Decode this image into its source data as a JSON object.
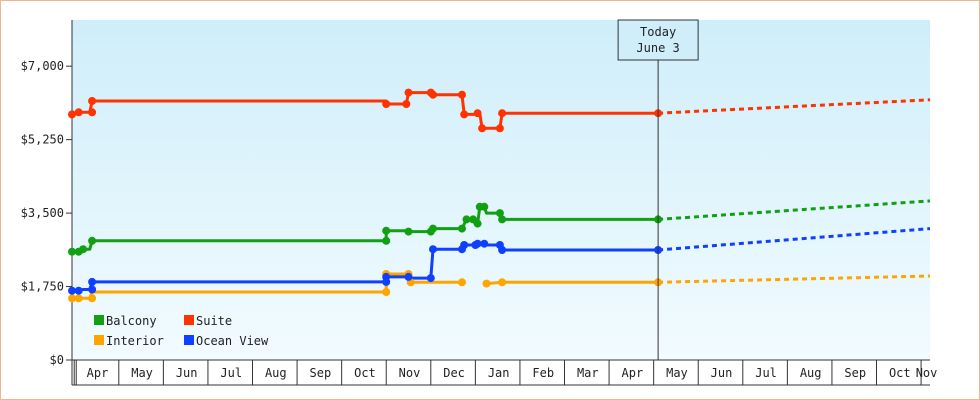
{
  "chart_data": {
    "type": "line",
    "title": "",
    "xlabel": "",
    "ylabel": "",
    "ylim": [
      0,
      8100
    ],
    "y_ticks": [
      {
        "value": 0,
        "label": "$0"
      },
      {
        "value": 1750,
        "label": "$1,750"
      },
      {
        "value": 3500,
        "label": "$3,500"
      },
      {
        "value": 5250,
        "label": "$5,250"
      },
      {
        "value": 7000,
        "label": "$7,000"
      }
    ],
    "months": [
      "Apr",
      "May",
      "Jun",
      "Jul",
      "Aug",
      "Sep",
      "Oct",
      "Nov",
      "Dec",
      "Jan",
      "Feb",
      "Mar",
      "Apr",
      "May",
      "Jun",
      "Jul",
      "Aug",
      "Sep",
      "Oct",
      "Nov"
    ],
    "x_range": [
      -0.05,
      19.2
    ],
    "today": {
      "x": 13.1,
      "label_line1": "Today",
      "label_line2": "June 3"
    },
    "grid": false,
    "legend_position": "bottom-left",
    "series": [
      {
        "name": "Balcony",
        "color": "#11a011",
        "points": [
          [
            -0.05,
            2580
          ],
          [
            0.0,
            2580
          ],
          [
            0.2,
            2640
          ],
          [
            0.35,
            2640
          ],
          [
            0.4,
            2840
          ],
          [
            7.0,
            2840
          ],
          [
            7.0,
            3080
          ],
          [
            7.5,
            3080
          ],
          [
            7.55,
            3060
          ],
          [
            8.0,
            3060
          ],
          [
            8.05,
            3130
          ],
          [
            8.7,
            3130
          ],
          [
            8.8,
            3350
          ],
          [
            8.95,
            3350
          ],
          [
            9.0,
            3250
          ],
          [
            9.05,
            3250
          ],
          [
            9.1,
            3650
          ],
          [
            9.2,
            3650
          ],
          [
            9.25,
            3500
          ],
          [
            9.55,
            3500
          ],
          [
            9.6,
            3350
          ],
          [
            13.1,
            3350
          ]
        ],
        "forecast": [
          [
            13.1,
            3350
          ],
          [
            19.2,
            3790
          ]
        ]
      },
      {
        "name": "Suite",
        "color": "#ff3300",
        "points": [
          [
            -0.05,
            5850
          ],
          [
            0.0,
            5850
          ],
          [
            0.1,
            5900
          ],
          [
            0.35,
            5900
          ],
          [
            0.4,
            6170
          ],
          [
            7.0,
            6170
          ],
          [
            7.0,
            6100
          ],
          [
            7.45,
            6100
          ],
          [
            7.5,
            6370
          ],
          [
            8.0,
            6370
          ],
          [
            8.05,
            6320
          ],
          [
            8.7,
            6320
          ],
          [
            8.75,
            5850
          ],
          [
            9.0,
            5850
          ],
          [
            9.05,
            5880
          ],
          [
            9.1,
            5880
          ],
          [
            9.15,
            5520
          ],
          [
            9.55,
            5520
          ],
          [
            9.6,
            5880
          ],
          [
            13.1,
            5880
          ]
        ],
        "forecast": [
          [
            13.1,
            5880
          ],
          [
            19.2,
            6200
          ]
        ]
      },
      {
        "name": "Interior",
        "color": "#ffa500",
        "points": [
          [
            -0.05,
            1470
          ],
          [
            0.0,
            1470
          ],
          [
            0.35,
            1470
          ],
          [
            0.4,
            1620
          ],
          [
            7.0,
            1620
          ],
          [
            7.0,
            2050
          ],
          [
            7.5,
            2050
          ],
          [
            7.55,
            1850
          ],
          [
            8.7,
            1850
          ]
        ],
        "points2": [
          [
            9.25,
            1820
          ],
          [
            9.6,
            1850
          ],
          [
            13.1,
            1850
          ]
        ],
        "forecast": [
          [
            13.1,
            1850
          ],
          [
            19.2,
            2000
          ]
        ]
      },
      {
        "name": "Ocean View",
        "color": "#1040ff",
        "points": [
          [
            -0.05,
            1650
          ],
          [
            0.0,
            1650
          ],
          [
            0.2,
            1680
          ],
          [
            0.35,
            1680
          ],
          [
            0.4,
            1860
          ],
          [
            7.0,
            1860
          ],
          [
            7.0,
            1980
          ],
          [
            7.5,
            1980
          ],
          [
            7.55,
            1950
          ],
          [
            8.0,
            1950
          ],
          [
            8.05,
            2640
          ],
          [
            8.7,
            2640
          ],
          [
            8.75,
            2740
          ],
          [
            9.0,
            2740
          ],
          [
            9.05,
            2770
          ],
          [
            9.2,
            2770
          ],
          [
            9.25,
            2740
          ],
          [
            9.55,
            2740
          ],
          [
            9.6,
            2620
          ],
          [
            13.1,
            2620
          ]
        ],
        "forecast": [
          [
            13.1,
            2620
          ],
          [
            19.2,
            3130
          ]
        ]
      }
    ],
    "markers": {
      "Balcony": [
        [
          -0.05,
          2580
        ],
        [
          0.1,
          2580
        ],
        [
          0.2,
          2640
        ],
        [
          0.4,
          2840
        ],
        [
          7.0,
          2840
        ],
        [
          7.0,
          3080
        ],
        [
          7.5,
          3060
        ],
        [
          8.0,
          3060
        ],
        [
          8.05,
          3130
        ],
        [
          8.7,
          3130
        ],
        [
          8.8,
          3350
        ],
        [
          8.95,
          3350
        ],
        [
          9.05,
          3250
        ],
        [
          9.1,
          3650
        ],
        [
          9.2,
          3650
        ],
        [
          9.55,
          3500
        ],
        [
          9.6,
          3350
        ],
        [
          13.1,
          3350
        ]
      ],
      "Suite": [
        [
          -0.05,
          5850
        ],
        [
          0.1,
          5900
        ],
        [
          0.4,
          5900
        ],
        [
          0.4,
          6170
        ],
        [
          7.0,
          6100
        ],
        [
          7.45,
          6100
        ],
        [
          7.5,
          6370
        ],
        [
          8.0,
          6370
        ],
        [
          8.05,
          6320
        ],
        [
          8.7,
          6320
        ],
        [
          8.75,
          5850
        ],
        [
          9.05,
          5880
        ],
        [
          9.15,
          5520
        ],
        [
          9.55,
          5520
        ],
        [
          9.6,
          5880
        ],
        [
          13.1,
          5880
        ]
      ],
      "Interior": [
        [
          -0.05,
          1470
        ],
        [
          0.1,
          1470
        ],
        [
          0.4,
          1470
        ],
        [
          7.0,
          1620
        ],
        [
          7.0,
          2050
        ],
        [
          7.5,
          2050
        ],
        [
          7.55,
          1850
        ],
        [
          8.7,
          1850
        ],
        [
          9.25,
          1820
        ],
        [
          9.6,
          1850
        ],
        [
          13.1,
          1850
        ]
      ],
      "Ocean View": [
        [
          -0.05,
          1650
        ],
        [
          0.1,
          1650
        ],
        [
          0.4,
          1680
        ],
        [
          0.4,
          1860
        ],
        [
          7.0,
          1860
        ],
        [
          7.0,
          1980
        ],
        [
          7.5,
          1980
        ],
        [
          8.0,
          1950
        ],
        [
          8.05,
          2640
        ],
        [
          8.7,
          2640
        ],
        [
          8.75,
          2740
        ],
        [
          9.0,
          2740
        ],
        [
          9.05,
          2770
        ],
        [
          9.2,
          2770
        ],
        [
          9.55,
          2740
        ],
        [
          9.6,
          2620
        ],
        [
          13.1,
          2620
        ]
      ]
    },
    "legend": [
      {
        "name": "Balcony",
        "color": "#11a011"
      },
      {
        "name": "Suite",
        "color": "#ff3300"
      },
      {
        "name": "Interior",
        "color": "#ffa500"
      },
      {
        "name": "Ocean View",
        "color": "#1040ff"
      }
    ]
  }
}
